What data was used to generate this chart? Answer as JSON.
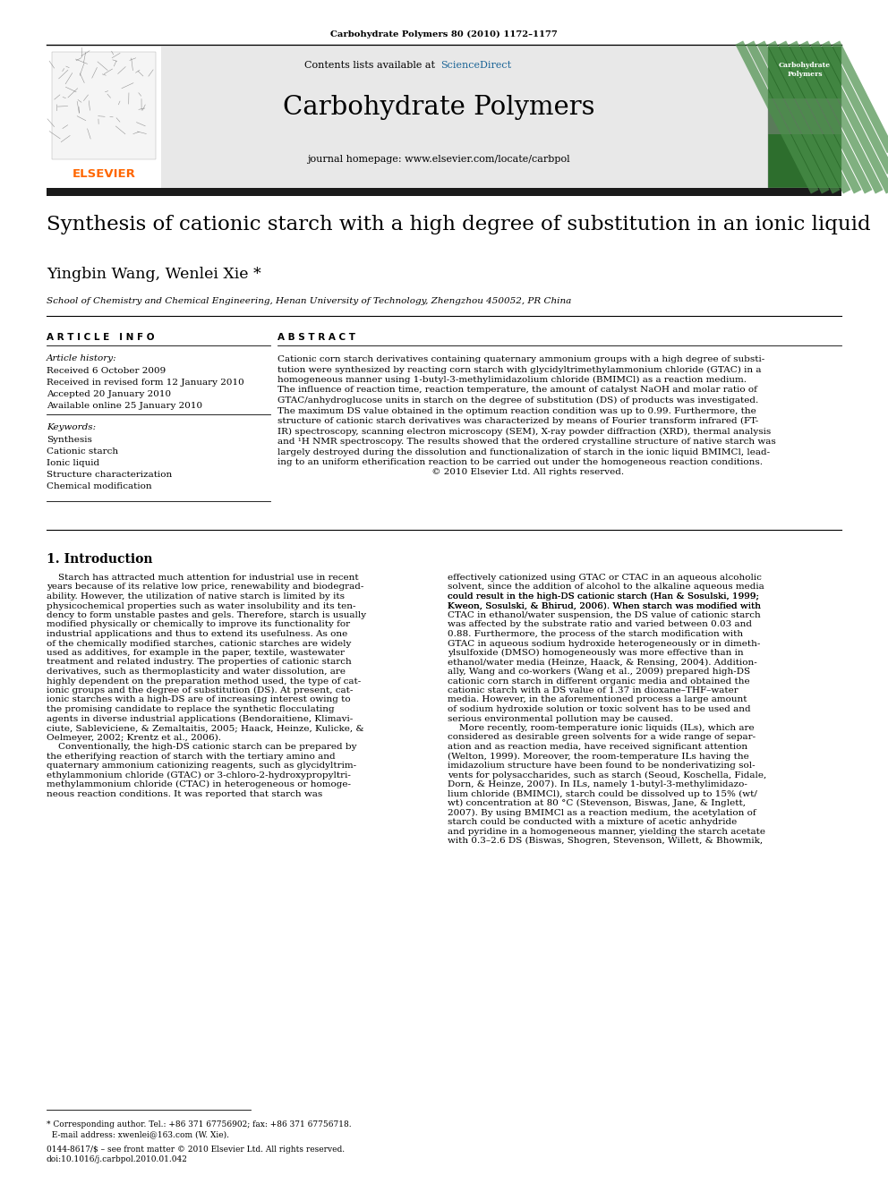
{
  "page_bg": "#ffffff",
  "top_citation": "Carbohydrate Polymers 80 (2010) 1172–1177",
  "journal_name": "Carbohydrate Polymers",
  "contents_line_prefix": "Contents lists available at ",
  "contents_sciencedirect": "ScienceDirect",
  "journal_homepage": "journal homepage: www.elsevier.com/locate/carbpol",
  "paper_title": "Synthesis of cationic starch with a high degree of substitution in an ionic liquid",
  "authors": "Yingbin Wang, Wenlei Xie *",
  "affiliation": "School of Chemistry and Chemical Engineering, Henan University of Technology, Zhengzhou 450052, PR China",
  "article_info_header": "A R T I C L E   I N F O",
  "abstract_header": "A B S T R A C T",
  "article_history_label": "Article history:",
  "received": "Received 6 October 2009",
  "received_revised": "Received in revised form 12 January 2010",
  "accepted": "Accepted 20 January 2010",
  "available_online": "Available online 25 January 2010",
  "keywords_label": "Keywords:",
  "keywords": [
    "Synthesis",
    "Cationic starch",
    "Ionic liquid",
    "Structure characterization",
    "Chemical modification"
  ],
  "abstract_lines": [
    "Cationic corn starch derivatives containing quaternary ammonium groups with a high degree of substi-",
    "tution were synthesized by reacting corn starch with glycidyltrimethylammonium chloride (GTAC) in a",
    "homogeneous manner using 1-butyl-3-methylimidazolium chloride (BMIMCl) as a reaction medium.",
    "The influence of reaction time, reaction temperature, the amount of catalyst NaOH and molar ratio of",
    "GTAC/anhydroglucose units in starch on the degree of substitution (DS) of products was investigated.",
    "The maximum DS value obtained in the optimum reaction condition was up to 0.99. Furthermore, the",
    "structure of cationic starch derivatives was characterized by means of Fourier transform infrared (FT-",
    "IR) spectroscopy, scanning electron microscopy (SEM), X-ray powder diffraction (XRD), thermal analysis",
    "and ¹H NMR spectroscopy. The results showed that the ordered crystalline structure of native starch was",
    "largely destroyed during the dissolution and functionalization of starch in the ionic liquid BMIMCl, lead-",
    "ing to an uniform etherification reaction to be carried out under the homogeneous reaction conditions.",
    "                                                     © 2010 Elsevier Ltd. All rights reserved."
  ],
  "section1_title": "1. Introduction",
  "intro_col1_lines": [
    "    Starch has attracted much attention for industrial use in recent",
    "years because of its relative low price, renewability and biodegrad-",
    "ability. However, the utilization of native starch is limited by its",
    "physicochemical properties such as water insolubility and its ten-",
    "dency to form unstable pastes and gels. Therefore, starch is usually",
    "modified physically or chemically to improve its functionality for",
    "industrial applications and thus to extend its usefulness. As one",
    "of the chemically modified starches, cationic starches are widely",
    "used as additives, for example in the paper, textile, wastewater",
    "treatment and related industry. The properties of cationic starch",
    "derivatives, such as thermoplasticity and water dissolution, are",
    "highly dependent on the preparation method used, the type of cat-",
    "ionic groups and the degree of substitution (DS). At present, cat-",
    "ionic starches with a high-DS are of increasing interest owing to",
    "the promising candidate to replace the synthetic flocculating",
    "agents in diverse industrial applications (Bendoraitiene, Klimavi-",
    "ciute, Sableviciene, & Zemaltaitis, 2005; Haack, Heinze, Kulicke, &",
    "Oelmeyer, 2002; Krentz et al., 2006).",
    "    Conventionally, the high-DS cationic starch can be prepared by",
    "the etherifying reaction of starch with the tertiary amino and",
    "quaternary ammonium cationizing reagents, such as glycidyltrim-",
    "ethylammonium chloride (GTAC) or 3-chloro-2-hydroxypropyltri-",
    "methylammonium chloride (CTAC) in heterogeneous or homoge-",
    "neous reaction conditions. It was reported that starch was"
  ],
  "intro_col2_lines": [
    "effectively cationized using GTAC or CTAC in an aqueous alcoholic",
    "solvent, since the addition of alcohol to the alkaline aqueous media",
    "could result in the high-DS cationic starch (Han & Sosulski, 1999;",
    "Kweon, Sosulski, & Bhirud, 2006). When starch was modified with",
    "CTAC in ethanol/water suspension, the DS value of cationic starch",
    "was affected by the substrate ratio and varied between 0.03 and",
    "0.88. Furthermore, the process of the starch modification with",
    "GTAC in aqueous sodium hydroxide heterogeneously or in dimeth-",
    "ylsulfoxide (DMSO) homogeneously was more effective than in",
    "ethanol/water media (Heinze, Haack, & Rensing, 2004). Addition-",
    "ally, Wang and co-workers (Wang et al., 2009) prepared high-DS",
    "cationic corn starch in different organic media and obtained the",
    "cationic starch with a DS value of 1.37 in dioxane–THF–water",
    "media. However, in the aforementioned process a large amount",
    "of sodium hydroxide solution or toxic solvent has to be used and",
    "serious environmental pollution may be caused.",
    "    More recently, room-temperature ionic liquids (ILs), which are",
    "considered as desirable green solvents for a wide range of separ-",
    "ation and as reaction media, have received significant attention",
    "(Welton, 1999). Moreover, the room-temperature ILs having the",
    "imidazolium structure have been found to be nonderivatizing sol-",
    "vents for polysaccharides, such as starch (Seoud, Koschella, Fidale,",
    "Dorn, & Heinze, 2007). In ILs, namely 1-butyl-3-methylimidazo-",
    "lium chloride (BMIMCl), starch could be dissolved up to 15% (wt/",
    "wt) concentration at 80 °C (Stevenson, Biswas, Jane, & Inglett,",
    "2007). By using BMIMCl as a reaction medium, the acetylation of",
    "starch could be conducted with a mixture of acetic anhydride",
    "and pyridine in a homogeneous manner, yielding the starch acetate",
    "with 0.3–2.6 DS (Biswas, Shogren, Stevenson, Willett, & Bhowmik,"
  ],
  "footer_left_lines": [
    "* Corresponding author. Tel.: +86 371 67756902; fax: +86 371 67756718.",
    "  E-mail address: xwenlei@163.com (W. Xie)."
  ],
  "footer_issn_lines": [
    "0144-8617/$ – see front matter © 2010 Elsevier Ltd. All rights reserved.",
    "doi:10.1016/j.carbpol.2010.01.042"
  ],
  "elsevier_color": "#FF6600",
  "sciencedirect_color": "#1a6496",
  "header_bg": "#e8e8e8",
  "black_bar_color": "#1a1a1a",
  "link_color": "#1a6496",
  "cover_green_dark": "#2d6e2d",
  "cover_green_light": "#5a9e5a",
  "cover_green_stripe": "#4a8f4a"
}
